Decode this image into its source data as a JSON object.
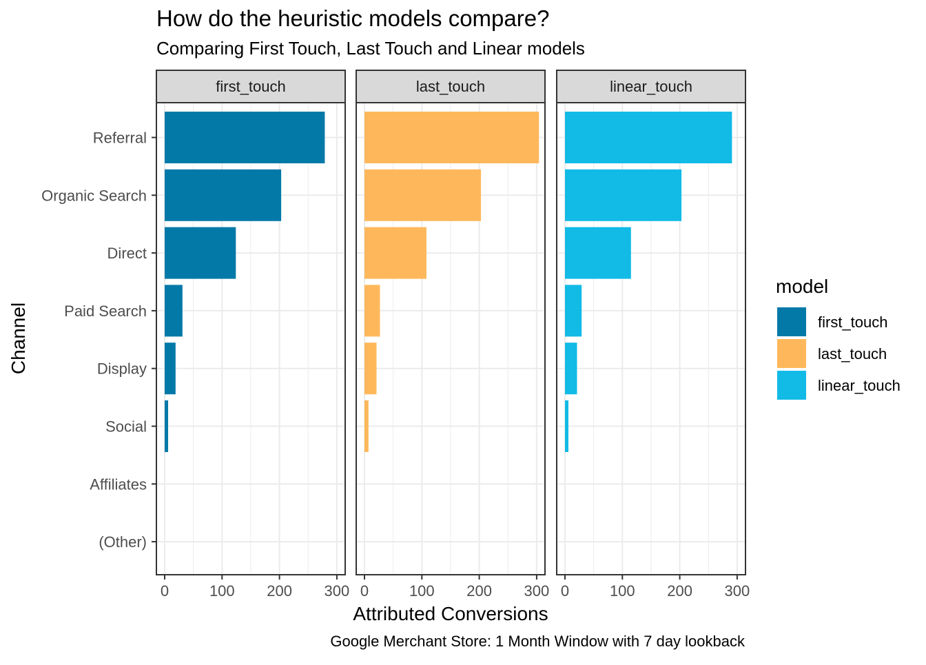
{
  "chart_data": {
    "type": "bar",
    "orientation": "horizontal",
    "title": "How do the heuristic models compare?",
    "subtitle": "Comparing First Touch, Last Touch and Linear models",
    "xlabel": "Attributed Conversions",
    "ylabel": "Channel",
    "caption": "Google Merchant Store: 1 Month Window with 7 day lookback",
    "categories": [
      "Referral",
      "Organic Search",
      "Direct",
      "Paid Search",
      "Display",
      "Social",
      "Affiliates",
      "(Other)"
    ],
    "xlim": [
      0,
      300
    ],
    "x_ticks": [
      "0",
      "100",
      "200",
      "300"
    ],
    "grid": true,
    "legend_title": "model",
    "legend_position": "right",
    "series": [
      {
        "name": "first_touch",
        "color": "#0379A8",
        "values": [
          279,
          203,
          124,
          31,
          19,
          6,
          0,
          0
        ]
      },
      {
        "name": "last_touch",
        "color": "#FEB85B",
        "values": [
          304,
          203,
          108,
          27,
          21,
          7,
          0,
          0
        ]
      },
      {
        "name": "linear_touch",
        "color": "#12BAE6",
        "values": [
          291,
          203,
          115,
          29,
          21,
          6,
          0,
          0
        ]
      }
    ]
  }
}
